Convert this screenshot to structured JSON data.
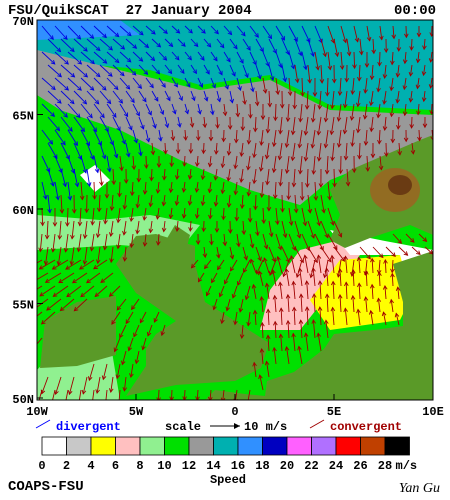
{
  "header": {
    "title": "FSU/QuikSCAT  27 January 2004",
    "time": "00:00"
  },
  "map": {
    "lat_labels": [
      "70N",
      "65N",
      "60N",
      "55N",
      "50N"
    ],
    "lon_labels": [
      "10W",
      "5W",
      "0",
      "5E",
      "10E"
    ]
  },
  "legend": {
    "divergent": "divergent",
    "scale": "scale",
    "scale_value": "10 m/s",
    "convergent": "convergent"
  },
  "colorbar": {
    "labels": [
      0,
      2,
      4,
      6,
      8,
      10,
      12,
      14,
      16,
      18,
      20,
      22,
      24,
      26,
      28
    ],
    "unit": "m/s",
    "title": "Speed",
    "colors": [
      "#ffffff",
      "#c8c8c8",
      "#ffff00",
      "#ffc0c0",
      "#90f090",
      "#00e000",
      "#999999",
      "#00b0b0",
      "#3090ff",
      "#0000c0",
      "#ff60ff",
      "#b070ff",
      "#ff0000",
      "#c04000",
      "#000000"
    ]
  },
  "footer": {
    "left": "COAPS-FSU",
    "right": "Yan Gu"
  }
}
